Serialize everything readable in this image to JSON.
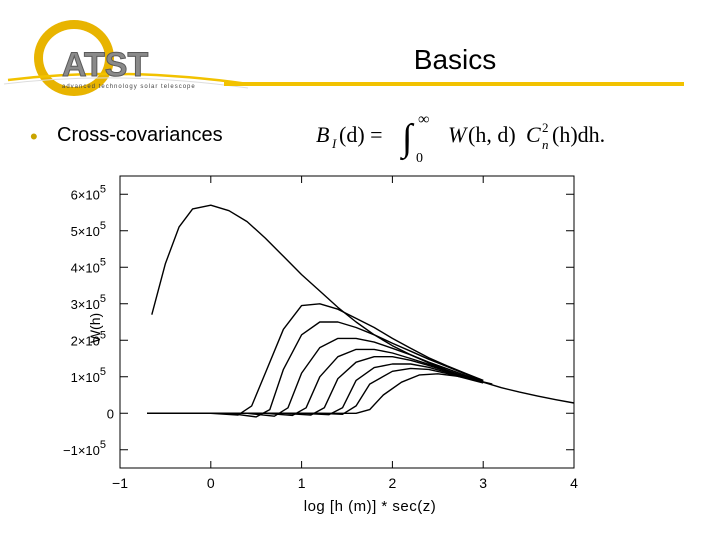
{
  "slide": {
    "title": "Basics",
    "bullet": "Cross-covariances",
    "accent_color": "#f2c200",
    "logo": {
      "text": "ATST",
      "tagline": "advanced technology solar telescope",
      "icon": "atst-logo-icon"
    }
  },
  "formula": {
    "lhs": "B",
    "lhs_sub": "I",
    "lhs_arg": "(d) =",
    "integral_upper": "∞",
    "integral_lower": "0",
    "integrand_w": "W",
    "integrand_args": "(h, d)",
    "integrand_c": "C",
    "integrand_c_sup": "2",
    "integrand_c_sub": "n",
    "integrand_tail": "(h)dh."
  },
  "chart_data": {
    "type": "line",
    "xlabel": "log [h (m)] * sec(z)",
    "ylabel": "W(h)",
    "xlim": [
      -1,
      4
    ],
    "ylim": [
      -150000.0,
      650000.0
    ],
    "xticks": [
      -1,
      0,
      1,
      2,
      3,
      4
    ],
    "xtick_labels": [
      "−1",
      "0",
      "1",
      "2",
      "3",
      "4"
    ],
    "yticks": [
      -100000,
      0,
      100000,
      200000,
      300000,
      400000,
      500000,
      600000
    ],
    "ytick_labels": [
      {
        "base": "−1×10",
        "exp": "5"
      },
      {
        "base": "0",
        "exp": ""
      },
      {
        "base": "1×10",
        "exp": "5"
      },
      {
        "base": "2×10",
        "exp": "5"
      },
      {
        "base": "3×10",
        "exp": "5"
      },
      {
        "base": "4×10",
        "exp": "5"
      },
      {
        "base": "5×10",
        "exp": "5"
      },
      {
        "base": "6×10",
        "exp": "5"
      }
    ],
    "series": [
      {
        "x": [
          -0.65,
          -0.5,
          -0.35,
          -0.2,
          0.0,
          0.2,
          0.4,
          0.6,
          0.8,
          1.0,
          1.2,
          1.4,
          1.6,
          1.8,
          2.0,
          2.2,
          2.4,
          2.6,
          2.8,
          3.0,
          3.2,
          3.4,
          3.6,
          3.8,
          4.0
        ],
        "y": [
          270000,
          410000,
          510000,
          560000,
          570000,
          555000,
          525000,
          480000,
          430000,
          380000,
          335000,
          290000,
          250000,
          215000,
          185000,
          160000,
          138000,
          118000,
          100000,
          85000,
          70000,
          58000,
          47000,
          37000,
          28000
        ]
      },
      {
        "x": [
          -0.7,
          0.0,
          0.3,
          0.45,
          0.6,
          0.8,
          1.0,
          1.2,
          1.4,
          1.6,
          1.8,
          2.0,
          2.2,
          2.4,
          2.6,
          2.8,
          3.0
        ],
        "y": [
          0,
          0,
          -5000,
          20000,
          110000,
          230000,
          295000,
          300000,
          285000,
          260000,
          235000,
          205000,
          178000,
          152000,
          130000,
          110000,
          90000
        ]
      },
      {
        "x": [
          -0.7,
          0.2,
          0.5,
          0.65,
          0.8,
          1.0,
          1.2,
          1.4,
          1.6,
          1.8,
          2.0,
          2.2,
          2.4,
          2.6,
          2.8,
          3.0
        ],
        "y": [
          0,
          0,
          -10000,
          10000,
          120000,
          215000,
          250000,
          250000,
          235000,
          215000,
          192000,
          170000,
          148000,
          128000,
          108000,
          90000
        ]
      },
      {
        "x": [
          -0.7,
          0.4,
          0.7,
          0.85,
          1.0,
          1.2,
          1.4,
          1.6,
          1.8,
          2.0,
          2.2,
          2.4,
          2.6,
          2.8,
          3.0
        ],
        "y": [
          0,
          0,
          -8000,
          15000,
          110000,
          180000,
          205000,
          205000,
          195000,
          178000,
          160000,
          140000,
          122000,
          104000,
          88000
        ]
      },
      {
        "x": [
          -0.7,
          0.6,
          0.9,
          1.05,
          1.2,
          1.4,
          1.6,
          1.8,
          2.0,
          2.2,
          2.4,
          2.6,
          2.8,
          3.0
        ],
        "y": [
          0,
          0,
          -6000,
          15000,
          100000,
          155000,
          175000,
          175000,
          165000,
          150000,
          134000,
          117000,
          101000,
          86000
        ]
      },
      {
        "x": [
          -0.7,
          0.8,
          1.1,
          1.25,
          1.4,
          1.6,
          1.8,
          2.0,
          2.2,
          2.4,
          2.6,
          2.8,
          3.0
        ],
        "y": [
          0,
          0,
          -5000,
          15000,
          95000,
          140000,
          155000,
          155000,
          145000,
          131000,
          115000,
          100000,
          85000
        ]
      },
      {
        "x": [
          -0.7,
          1.0,
          1.3,
          1.45,
          1.6,
          1.8,
          2.0,
          2.2,
          2.4,
          2.6,
          2.8,
          3.0
        ],
        "y": [
          0,
          0,
          -4000,
          15000,
          90000,
          125000,
          135000,
          135000,
          126000,
          112000,
          98000,
          84000
        ]
      },
      {
        "x": [
          -0.7,
          1.2,
          1.45,
          1.6,
          1.75,
          2.0,
          2.2,
          2.4,
          2.6,
          2.8,
          3.0
        ],
        "y": [
          0,
          0,
          -3000,
          20000,
          80000,
          115000,
          123000,
          120000,
          109000,
          96000,
          83000
        ]
      },
      {
        "x": [
          -0.7,
          1.6,
          1.75,
          1.9,
          2.1,
          2.3,
          2.5,
          2.7,
          2.9,
          3.1
        ],
        "y": [
          0,
          0,
          10000,
          50000,
          85000,
          105000,
          108000,
          102000,
          92000,
          80000
        ]
      }
    ]
  }
}
